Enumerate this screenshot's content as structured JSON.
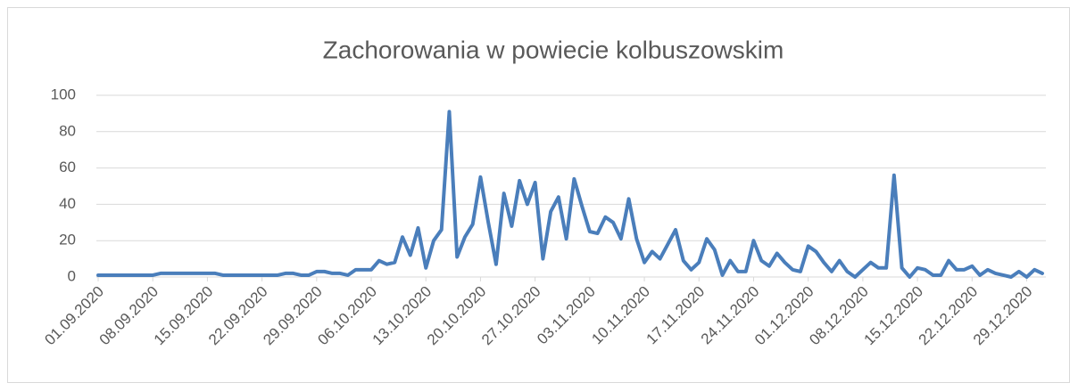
{
  "chart_data": {
    "type": "line",
    "title": "Zachorowania w powiecie kolbuszowskim",
    "categories": [
      "01.09.2020",
      null,
      null,
      null,
      null,
      null,
      null,
      "08.09.2020",
      null,
      null,
      null,
      null,
      null,
      null,
      "15.09.2020",
      null,
      null,
      null,
      null,
      null,
      null,
      "22.09.2020",
      null,
      null,
      null,
      null,
      null,
      null,
      "29.09.2020",
      null,
      null,
      null,
      null,
      null,
      null,
      "06.10.2020",
      null,
      null,
      null,
      null,
      null,
      null,
      "13.10.2020",
      null,
      null,
      null,
      null,
      null,
      null,
      "20.10.2020",
      null,
      null,
      null,
      null,
      null,
      null,
      "27.10.2020",
      null,
      null,
      null,
      null,
      null,
      null,
      "03.11.2020",
      null,
      null,
      null,
      null,
      null,
      null,
      "10.11.2020",
      null,
      null,
      null,
      null,
      null,
      null,
      "17.11.2020",
      null,
      null,
      null,
      null,
      null,
      null,
      "24.11.2020",
      null,
      null,
      null,
      null,
      null,
      null,
      "01.12.2020",
      null,
      null,
      null,
      null,
      null,
      null,
      "08.12.2020",
      null,
      null,
      null,
      null,
      null,
      null,
      "15.12.2020",
      null,
      null,
      null,
      null,
      null,
      null,
      "22.12.2020",
      null,
      null,
      null,
      null,
      null,
      null,
      "29.12.2020",
      null,
      null
    ],
    "series": [
      {
        "color": "#4a7ebb",
        "values": [
          1,
          1,
          1,
          1,
          1,
          1,
          1,
          1,
          2,
          2,
          2,
          2,
          2,
          2,
          2,
          2,
          1,
          1,
          1,
          1,
          1,
          1,
          1,
          1,
          2,
          2,
          1,
          1,
          3,
          3,
          2,
          2,
          1,
          4,
          4,
          4,
          9,
          7,
          8,
          22,
          12,
          27,
          5,
          20,
          26,
          91,
          11,
          22,
          29,
          55,
          30,
          7,
          46,
          28,
          53,
          40,
          52,
          10,
          36,
          44,
          21,
          54,
          39,
          25,
          24,
          33,
          30,
          21,
          43,
          21,
          8,
          14,
          10,
          18,
          26,
          9,
          4,
          8,
          21,
          15,
          1,
          9,
          3,
          3,
          20,
          9,
          6,
          13,
          8,
          4,
          3,
          17,
          14,
          8,
          3,
          9,
          3,
          0,
          4,
          8,
          5,
          5,
          56,
          5,
          0,
          5,
          4,
          1,
          1,
          9,
          4,
          4,
          6,
          1,
          4,
          2,
          1,
          0,
          3,
          0,
          4,
          2
        ]
      }
    ],
    "ylim": [
      0,
      100
    ],
    "yticks": [
      0,
      20,
      40,
      60,
      80,
      100
    ],
    "grid": true
  }
}
